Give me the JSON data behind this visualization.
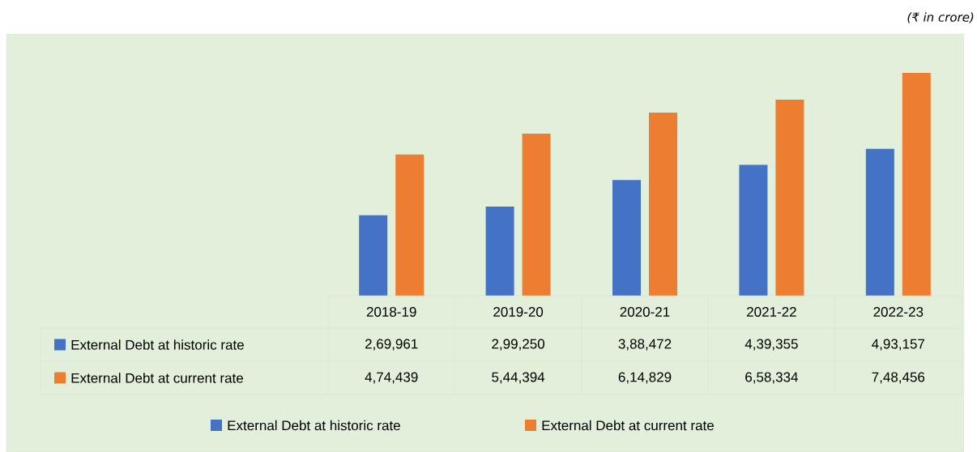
{
  "chart_data": {
    "type": "bar",
    "categories": [
      "2018-19",
      "2019-20",
      "2020-21",
      "2021-22",
      "2022-23"
    ],
    "series": [
      {
        "name": "External Debt at historic rate",
        "color": "#4472c4",
        "values": [
          269961,
          299250,
          388472,
          439355,
          493157
        ],
        "value_labels": [
          "2,69,961",
          "2,99,250",
          "3,88,472",
          "4,39,355",
          "4,93,157"
        ]
      },
      {
        "name": "External Debt at current rate",
        "color": "#ed7d31",
        "values": [
          474439,
          544394,
          614829,
          658334,
          748456
        ],
        "value_labels": [
          "4,74,439",
          "5,44,394",
          "6,14,829",
          "6,58,334",
          "7,48,456"
        ]
      }
    ],
    "annotations": [
      "(₹ in crore)"
    ],
    "legend": "bottom"
  }
}
